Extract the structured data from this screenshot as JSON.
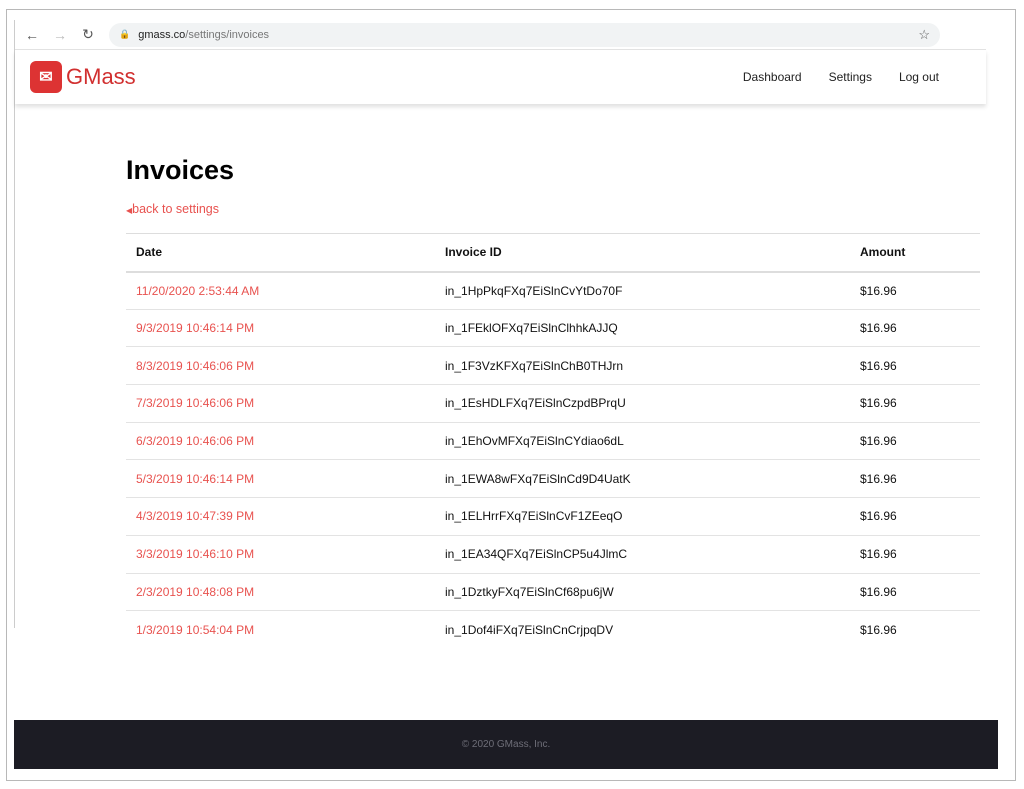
{
  "browser": {
    "url_host": "gmass.co",
    "url_path": "/settings/invoices"
  },
  "brand": {
    "name": "GMass",
    "color": "#d12f2f"
  },
  "nav": {
    "items": [
      "Dashboard",
      "Settings",
      "Log out"
    ]
  },
  "page": {
    "title": "Invoices",
    "back_link": "back to settings"
  },
  "table": {
    "headers": [
      "Date",
      "Invoice ID",
      "Amount"
    ],
    "rows": [
      [
        "11/20/2020 2:53:44 AM",
        "in_1HpPkqFXq7EiSlnCvYtDo70F",
        "$16.96"
      ],
      [
        "9/3/2019 10:46:14 PM",
        "in_1FEklOFXq7EiSlnClhhkAJJQ",
        "$16.96"
      ],
      [
        "8/3/2019 10:46:06 PM",
        "in_1F3VzKFXq7EiSlnChB0THJrn",
        "$16.96"
      ],
      [
        "7/3/2019 10:46:06 PM",
        "in_1EsHDLFXq7EiSlnCzpdBPrqU",
        "$16.96"
      ],
      [
        "6/3/2019 10:46:06 PM",
        "in_1EhOvMFXq7EiSlnCYdiao6dL",
        "$16.96"
      ],
      [
        "5/3/2019 10:46:14 PM",
        "in_1EWA8wFXq7EiSlnCd9D4UatK",
        "$16.96"
      ],
      [
        "4/3/2019 10:47:39 PM",
        "in_1ELHrrFXq7EiSlnCvF1ZEeqO",
        "$16.96"
      ],
      [
        "3/3/2019 10:46:10 PM",
        "in_1EA34QFXq7EiSlnCP5u4JlmC",
        "$16.96"
      ],
      [
        "2/3/2019 10:48:08 PM",
        "in_1DztkyFXq7EiSlnCf68pu6jW",
        "$16.96"
      ],
      [
        "1/3/2019 10:54:04 PM",
        "in_1Dof4iFXq7EiSlnCnCrjpqDV",
        "$16.96"
      ]
    ]
  },
  "footer": {
    "copyright": "© 2020 GMass, Inc."
  }
}
